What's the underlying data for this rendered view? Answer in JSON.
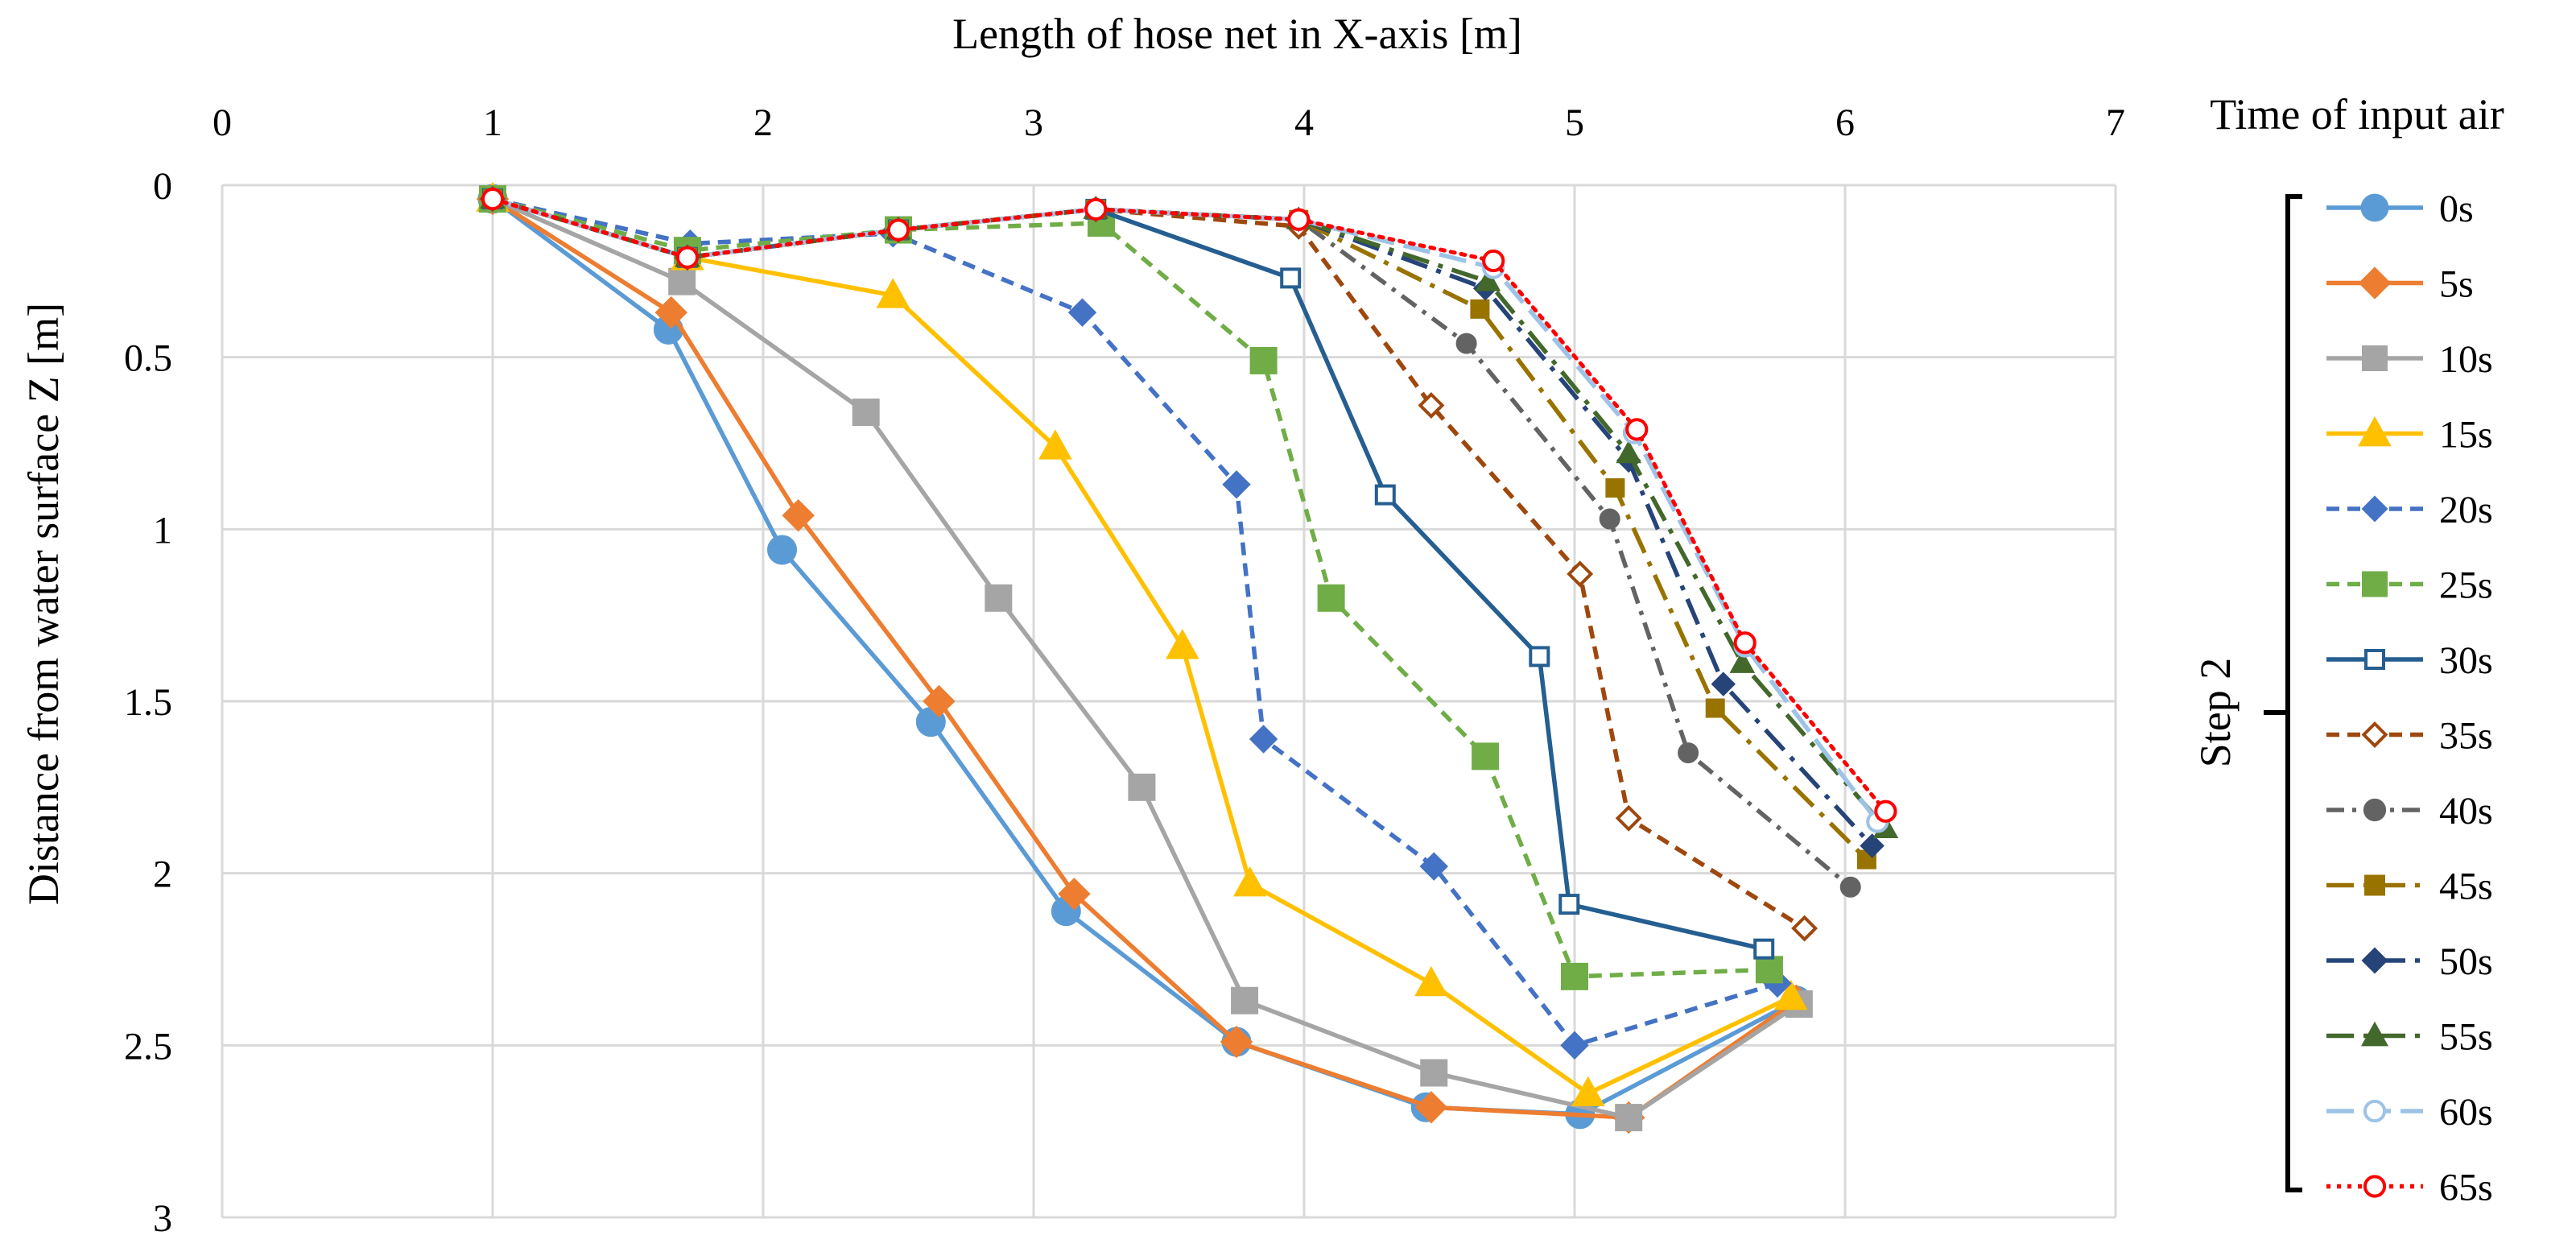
{
  "chart_data": {
    "type": "line",
    "title": "",
    "xlabel": "Length of hose net in X-axis [m]",
    "ylabel": "Distance from water surface Z [m]",
    "xlim": [
      0,
      7
    ],
    "ylim": [
      0,
      3
    ],
    "x_axis_position": "top",
    "y_axis_inverted": true,
    "x_ticks": [
      "0",
      "1",
      "2",
      "3",
      "4",
      "5",
      "6",
      "7"
    ],
    "y_ticks": [
      "0",
      "0.5",
      "1",
      "1.5",
      "2",
      "2.5",
      "3"
    ],
    "grid": true,
    "legend_title": "Time of input air",
    "legend_position": "right",
    "group_label": "Step 2",
    "series": [
      {
        "name": "0s",
        "color": "#5B9BD5",
        "dash": "solid",
        "marker": "circle",
        "filled": true,
        "points": [
          [
            1.0,
            0.04
          ],
          [
            1.65,
            0.42
          ],
          [
            2.07,
            1.06
          ],
          [
            2.62,
            1.56
          ],
          [
            3.12,
            2.11
          ],
          [
            3.75,
            2.49
          ],
          [
            4.45,
            2.68
          ],
          [
            5.02,
            2.7
          ],
          [
            5.82,
            2.37
          ]
        ]
      },
      {
        "name": "5s",
        "color": "#ED7D31",
        "dash": "solid",
        "marker": "diamond",
        "filled": true,
        "points": [
          [
            1.0,
            0.04
          ],
          [
            1.66,
            0.37
          ],
          [
            2.13,
            0.96
          ],
          [
            2.65,
            1.5
          ],
          [
            3.15,
            2.06
          ],
          [
            3.75,
            2.49
          ],
          [
            4.47,
            2.68
          ],
          [
            5.2,
            2.71
          ],
          [
            5.82,
            2.37
          ]
        ]
      },
      {
        "name": "10s",
        "color": "#A5A5A5",
        "dash": "solid",
        "marker": "square",
        "filled": true,
        "points": [
          [
            1.0,
            0.04
          ],
          [
            1.7,
            0.28
          ],
          [
            2.38,
            0.66
          ],
          [
            2.87,
            1.2
          ],
          [
            3.4,
            1.75
          ],
          [
            3.78,
            2.37
          ],
          [
            4.48,
            2.58
          ],
          [
            5.2,
            2.71
          ],
          [
            5.83,
            2.38
          ]
        ]
      },
      {
        "name": "15s",
        "color": "#FFC000",
        "dash": "solid",
        "marker": "triangle",
        "filled": true,
        "points": [
          [
            1.0,
            0.04
          ],
          [
            1.72,
            0.21
          ],
          [
            2.48,
            0.32
          ],
          [
            3.08,
            0.76
          ],
          [
            3.55,
            1.34
          ],
          [
            3.8,
            2.03
          ],
          [
            4.47,
            2.32
          ],
          [
            5.05,
            2.64
          ],
          [
            5.8,
            2.36
          ]
        ]
      },
      {
        "name": "20s",
        "color": "#4472C4",
        "dash": "dash",
        "marker": "diamond",
        "filled": true,
        "points": [
          [
            1.0,
            0.04
          ],
          [
            1.73,
            0.17
          ],
          [
            2.48,
            0.14
          ],
          [
            3.18,
            0.37
          ],
          [
            3.75,
            0.87
          ],
          [
            3.85,
            1.61
          ],
          [
            4.48,
            1.98
          ],
          [
            5.0,
            2.5
          ],
          [
            5.75,
            2.32
          ]
        ]
      },
      {
        "name": "25s",
        "color": "#70AD47",
        "dash": "dash",
        "marker": "square",
        "filled": true,
        "points": [
          [
            1.0,
            0.04
          ],
          [
            1.72,
            0.19
          ],
          [
            2.5,
            0.13
          ],
          [
            3.25,
            0.11
          ],
          [
            3.85,
            0.51
          ],
          [
            4.1,
            1.2
          ],
          [
            4.67,
            1.66
          ],
          [
            5.0,
            2.3
          ],
          [
            5.72,
            2.28
          ]
        ]
      },
      {
        "name": "30s",
        "color": "#255E91",
        "dash": "solid",
        "marker": "square",
        "filled": false,
        "points": [
          [
            1.0,
            0.04
          ],
          [
            1.72,
            0.21
          ],
          [
            2.5,
            0.13
          ],
          [
            3.23,
            0.07
          ],
          [
            3.95,
            0.27
          ],
          [
            4.3,
            0.9
          ],
          [
            4.87,
            1.37
          ],
          [
            4.98,
            2.09
          ],
          [
            5.7,
            2.22
          ]
        ]
      },
      {
        "name": "35s",
        "color": "#9E480E",
        "dash": "dash",
        "marker": "diamond",
        "filled": false,
        "points": [
          [
            1.0,
            0.04
          ],
          [
            1.72,
            0.21
          ],
          [
            2.5,
            0.13
          ],
          [
            3.23,
            0.07
          ],
          [
            3.98,
            0.12
          ],
          [
            4.47,
            0.64
          ],
          [
            5.02,
            1.13
          ],
          [
            5.2,
            1.84
          ],
          [
            5.85,
            2.16
          ]
        ]
      },
      {
        "name": "40s",
        "color": "#636363",
        "dash": "dashdot",
        "marker": "circle",
        "filled": true,
        "points": [
          [
            1.0,
            0.04
          ],
          [
            1.72,
            0.21
          ],
          [
            2.5,
            0.13
          ],
          [
            3.23,
            0.07
          ],
          [
            3.98,
            0.1
          ],
          [
            4.6,
            0.46
          ],
          [
            5.13,
            0.97
          ],
          [
            5.42,
            1.65
          ],
          [
            6.02,
            2.04
          ]
        ]
      },
      {
        "name": "45s",
        "color": "#997300",
        "dash": "longdashdot",
        "marker": "square",
        "filled": true,
        "points": [
          [
            1.0,
            0.04
          ],
          [
            1.72,
            0.21
          ],
          [
            2.5,
            0.13
          ],
          [
            3.23,
            0.07
          ],
          [
            3.98,
            0.1
          ],
          [
            4.65,
            0.36
          ],
          [
            5.15,
            0.88
          ],
          [
            5.52,
            1.52
          ],
          [
            6.08,
            1.96
          ]
        ]
      },
      {
        "name": "50s",
        "color": "#264478",
        "dash": "longdashdot",
        "marker": "diamond",
        "filled": true,
        "points": [
          [
            1.0,
            0.04
          ],
          [
            1.72,
            0.21
          ],
          [
            2.5,
            0.13
          ],
          [
            3.23,
            0.07
          ],
          [
            3.98,
            0.1
          ],
          [
            4.67,
            0.3
          ],
          [
            5.2,
            0.8
          ],
          [
            5.55,
            1.45
          ],
          [
            6.1,
            1.92
          ]
        ]
      },
      {
        "name": "55s",
        "color": "#43682B",
        "dash": "longdashdot",
        "marker": "triangle",
        "filled": true,
        "points": [
          [
            1.0,
            0.04
          ],
          [
            1.72,
            0.21
          ],
          [
            2.5,
            0.13
          ],
          [
            3.23,
            0.07
          ],
          [
            3.98,
            0.1
          ],
          [
            4.68,
            0.28
          ],
          [
            5.2,
            0.78
          ],
          [
            5.62,
            1.39
          ],
          [
            6.15,
            1.87
          ]
        ]
      },
      {
        "name": "60s",
        "color": "#9DC3E6",
        "dash": "longdash",
        "marker": "circle",
        "filled": false,
        "points": [
          [
            1.0,
            0.04
          ],
          [
            1.72,
            0.21
          ],
          [
            2.5,
            0.13
          ],
          [
            3.23,
            0.07
          ],
          [
            3.98,
            0.1
          ],
          [
            4.7,
            0.24
          ],
          [
            5.22,
            0.72
          ],
          [
            5.63,
            1.34
          ],
          [
            6.12,
            1.85
          ]
        ]
      },
      {
        "name": "65s",
        "color": "#FF0000",
        "dash": "dot",
        "marker": "circle",
        "filled": false,
        "points": [
          [
            1.0,
            0.04
          ],
          [
            1.72,
            0.21
          ],
          [
            2.5,
            0.13
          ],
          [
            3.23,
            0.07
          ],
          [
            3.98,
            0.1
          ],
          [
            4.7,
            0.22
          ],
          [
            5.23,
            0.71
          ],
          [
            5.63,
            1.33
          ],
          [
            6.15,
            1.82
          ]
        ]
      }
    ]
  }
}
